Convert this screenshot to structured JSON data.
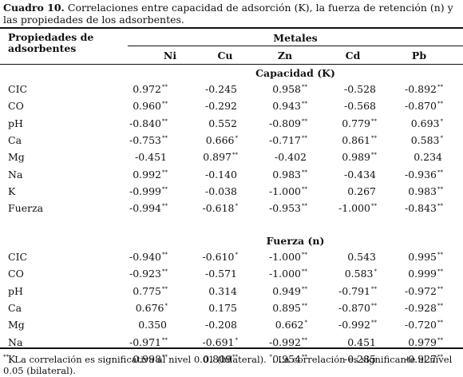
{
  "caption": {
    "label": "Cuadro 10.",
    "text": "Correlaciones entre capacidad de adsorción (K), la fuerza de retención (n) y las propiedades de los adsorbentes."
  },
  "header": {
    "properties": "Propiedades de adsorbentes",
    "metals_group": "Metales",
    "metals": [
      "Ni",
      "Cu",
      "Zn",
      "Cd",
      "Pb"
    ]
  },
  "sections": [
    {
      "title": "Capacidad (K)",
      "rows": [
        {
          "label": "CIC",
          "values": [
            [
              "0.972",
              "**"
            ],
            [
              "-0.245",
              ""
            ],
            [
              "0.958",
              "**"
            ],
            [
              "-0.528",
              ""
            ],
            [
              "-0.892",
              "**"
            ]
          ]
        },
        {
          "label": "CO",
          "values": [
            [
              "0.960",
              "**"
            ],
            [
              "-0.292",
              ""
            ],
            [
              "0.943",
              "**"
            ],
            [
              "-0.568",
              ""
            ],
            [
              "-0.870",
              "**"
            ]
          ]
        },
        {
          "label": "pH",
          "values": [
            [
              "-0.840",
              "**"
            ],
            [
              "0.552",
              ""
            ],
            [
              "-0.809",
              "**"
            ],
            [
              "0.779",
              "**"
            ],
            [
              "0.693",
              "*"
            ]
          ]
        },
        {
          "label": "Ca",
          "values": [
            [
              "-0.753",
              "**"
            ],
            [
              "0.666",
              "*"
            ],
            [
              "-0.717",
              "**"
            ],
            [
              "0.861",
              "**"
            ],
            [
              "0.583",
              "*"
            ]
          ]
        },
        {
          "label": "Mg",
          "values": [
            [
              "-0.451",
              ""
            ],
            [
              "0.897",
              "**"
            ],
            [
              "-0.402",
              ""
            ],
            [
              "0.989",
              "**"
            ],
            [
              "0.234",
              ""
            ]
          ]
        },
        {
          "label": "Na",
          "values": [
            [
              "0.992",
              "**"
            ],
            [
              "-0.140",
              ""
            ],
            [
              "0.983",
              "**"
            ],
            [
              "-0.434",
              ""
            ],
            [
              "-0.936",
              "**"
            ]
          ]
        },
        {
          "label": "K",
          "values": [
            [
              "-0.999",
              "**"
            ],
            [
              "-0.038",
              ""
            ],
            [
              "-1.000",
              "**"
            ],
            [
              "0.267",
              ""
            ],
            [
              "0.983",
              "**"
            ]
          ]
        },
        {
          "label": "Fuerza",
          "values": [
            [
              "-0.994",
              "**"
            ],
            [
              "-0.618",
              "*"
            ],
            [
              "-0.953",
              "**"
            ],
            [
              "-1.000",
              "**"
            ],
            [
              "-0.843",
              "**"
            ]
          ]
        }
      ]
    },
    {
      "title": "Fuerza (n)",
      "rows": [
        {
          "label": "CIC",
          "values": [
            [
              "-0.940",
              "**"
            ],
            [
              "-0.610",
              "*"
            ],
            [
              "-1.000",
              "**"
            ],
            [
              "0.543",
              ""
            ],
            [
              "0.995",
              "**"
            ]
          ]
        },
        {
          "label": "CO",
          "values": [
            [
              "-0.923",
              "**"
            ],
            [
              "-0.571",
              ""
            ],
            [
              "-1.000",
              "**"
            ],
            [
              "0.583",
              "*"
            ],
            [
              "0.999",
              "**"
            ]
          ]
        },
        {
          "label": "pH",
          "values": [
            [
              "0.775",
              "**"
            ],
            [
              "0.314",
              ""
            ],
            [
              "0.949",
              "**"
            ],
            [
              "-0.791",
              "**"
            ],
            [
              "-0.972",
              "**"
            ]
          ]
        },
        {
          "label": "Ca",
          "values": [
            [
              "0.676",
              "*"
            ],
            [
              "0.175",
              ""
            ],
            [
              "0.895",
              "**"
            ],
            [
              "-0.870",
              "**"
            ],
            [
              "-0.928",
              "**"
            ]
          ]
        },
        {
          "label": "Mg",
          "values": [
            [
              "0.350",
              ""
            ],
            [
              "-0.208",
              ""
            ],
            [
              "0.662",
              "*"
            ],
            [
              "-0.992",
              "**"
            ],
            [
              "-0.720",
              "**"
            ]
          ]
        },
        {
          "label": "Na",
          "values": [
            [
              "-0.971",
              "**"
            ],
            [
              "-0.691",
              "*"
            ],
            [
              "-0.992",
              "**"
            ],
            [
              "0.451",
              ""
            ],
            [
              "0.979",
              "**"
            ]
          ]
        },
        {
          "label": "K",
          "values": [
            [
              "0.998",
              "**"
            ],
            [
              "0.809",
              "**"
            ],
            [
              "0.954",
              "**"
            ],
            [
              "-0.285",
              ""
            ],
            [
              "-0.927",
              "**"
            ]
          ]
        }
      ]
    }
  ],
  "footnote": {
    "mark1": "**",
    "text1": ". La correlación es significativa al nivel 0.01 (bilateral).",
    "mark2": "*",
    "text2": ". La correlación es significante al nivel 0.05 (bilateral)."
  }
}
